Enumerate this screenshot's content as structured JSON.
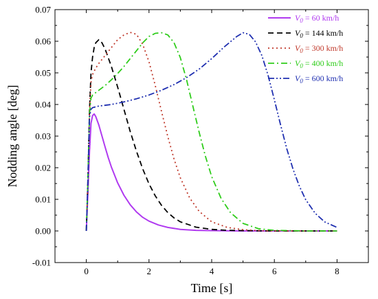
{
  "chart_data": {
    "type": "line",
    "xlabel": "Time [s]",
    "ylabel": "Nodding angle  [deg]",
    "xlim": [
      -1,
      9
    ],
    "ylim": [
      -0.01,
      0.07
    ],
    "x_ticks": [
      "0",
      "2",
      "4",
      "6",
      "8"
    ],
    "x_tick_values": [
      0,
      2,
      4,
      6,
      8
    ],
    "y_ticks": [
      "-0.01",
      "0.00",
      "0.01",
      "0.02",
      "0.03",
      "0.04",
      "0.05",
      "0.06",
      "0.07"
    ],
    "y_tick_values": [
      -0.01,
      0,
      0.01,
      0.02,
      0.03,
      0.04,
      0.05,
      0.06,
      0.07
    ],
    "legend_position": "top-right",
    "grid": false,
    "series": [
      {
        "name": "V0 = 60 km/h",
        "legend_var": "V",
        "legend_sub": "0",
        "legend_rest": " = 60 km/h",
        "color": "#b03af0",
        "style": "solid",
        "x": [
          0,
          0.05,
          0.1,
          0.15,
          0.2,
          0.25,
          0.3,
          0.4,
          0.5,
          0.6,
          0.7,
          0.8,
          1.0,
          1.2,
          1.4,
          1.6,
          1.8,
          2.0,
          2.3,
          2.6,
          3.0,
          3.5,
          4.0,
          5.0,
          6.0,
          7.0,
          8.0
        ],
        "y": [
          0,
          0.012,
          0.025,
          0.034,
          0.0365,
          0.037,
          0.0362,
          0.0335,
          0.03,
          0.0265,
          0.0232,
          0.0202,
          0.0152,
          0.0113,
          0.0083,
          0.006,
          0.0043,
          0.0031,
          0.0019,
          0.0011,
          0.0005,
          0.0002,
          0.0001,
          0,
          0,
          0,
          0
        ]
      },
      {
        "name": "V0 = 144 km/h",
        "legend_var": "V",
        "legend_sub": "0",
        "legend_rest": " = 144 km/h",
        "color": "#000000",
        "style": "dashed",
        "x": [
          0,
          0.05,
          0.1,
          0.15,
          0.2,
          0.25,
          0.3,
          0.4,
          0.5,
          0.6,
          0.8,
          1.0,
          1.2,
          1.4,
          1.6,
          1.8,
          2.0,
          2.2,
          2.4,
          2.6,
          2.8,
          3.0,
          3.5,
          4.0,
          4.5,
          5.0,
          6.0,
          7.0,
          8.0
        ],
        "y": [
          0,
          0.016,
          0.038,
          0.05,
          0.055,
          0.058,
          0.0595,
          0.0605,
          0.0595,
          0.0575,
          0.052,
          0.0455,
          0.0385,
          0.0315,
          0.0252,
          0.0196,
          0.0149,
          0.0111,
          0.0081,
          0.0058,
          0.0041,
          0.0029,
          0.0012,
          0.0005,
          0.0002,
          0.0001,
          0,
          0,
          0
        ]
      },
      {
        "name": "V0 = 300 km/h",
        "legend_var": "V",
        "legend_sub": "0",
        "legend_rest": " = 300 km/h",
        "color": "#c0392b",
        "style": "dotted",
        "x": [
          0,
          0.05,
          0.1,
          0.15,
          0.2,
          0.3,
          0.4,
          0.6,
          0.8,
          1.0,
          1.2,
          1.4,
          1.6,
          1.8,
          2.0,
          2.2,
          2.4,
          2.6,
          2.8,
          3.0,
          3.3,
          3.6,
          4.0,
          4.5,
          5.0,
          5.5,
          6.0,
          7.0,
          8.0
        ],
        "y": [
          0,
          0.016,
          0.038,
          0.047,
          0.0495,
          0.0515,
          0.053,
          0.0555,
          0.058,
          0.0605,
          0.062,
          0.0628,
          0.0622,
          0.059,
          0.0535,
          0.046,
          0.0378,
          0.0298,
          0.0227,
          0.0168,
          0.0104,
          0.0062,
          0.0029,
          0.0011,
          0.0004,
          0.0001,
          0,
          0,
          0
        ]
      },
      {
        "name": "V0 = 400 km/h",
        "legend_var": "V",
        "legend_sub": "0",
        "legend_rest": " = 400 km/h",
        "color": "#2ecc1a",
        "style": "dashdot",
        "x": [
          0,
          0.05,
          0.1,
          0.15,
          0.2,
          0.4,
          0.6,
          0.8,
          1.0,
          1.2,
          1.4,
          1.6,
          1.8,
          2.0,
          2.2,
          2.4,
          2.6,
          2.8,
          3.0,
          3.2,
          3.4,
          3.6,
          3.8,
          4.0,
          4.3,
          4.6,
          5.0,
          5.5,
          6.0,
          7.0,
          8.0
        ],
        "y": [
          0,
          0.016,
          0.037,
          0.042,
          0.043,
          0.0445,
          0.046,
          0.0478,
          0.0498,
          0.052,
          0.0545,
          0.057,
          0.0595,
          0.0615,
          0.0625,
          0.0627,
          0.062,
          0.0595,
          0.0548,
          0.0478,
          0.0395,
          0.0312,
          0.0236,
          0.0172,
          0.0103,
          0.0058,
          0.0024,
          0.0007,
          0.0002,
          0,
          0
        ]
      },
      {
        "name": "V0 = 600 km/h",
        "legend_var": "V",
        "legend_sub": "0",
        "legend_rest": " = 600 km/h",
        "color": "#1f2fb0",
        "style": "dashdotdot",
        "x": [
          0,
          0.05,
          0.1,
          0.15,
          0.2,
          0.4,
          0.8,
          1.2,
          1.6,
          2.0,
          2.4,
          2.8,
          3.2,
          3.6,
          4.0,
          4.4,
          4.8,
          5.0,
          5.2,
          5.4,
          5.6,
          5.8,
          6.0,
          6.2,
          6.4,
          6.6,
          6.8,
          7.0,
          7.3,
          7.6,
          8.0
        ],
        "y": [
          0,
          0.016,
          0.036,
          0.0385,
          0.039,
          0.0395,
          0.04,
          0.0408,
          0.0418,
          0.043,
          0.0445,
          0.0463,
          0.0485,
          0.0512,
          0.0545,
          0.0582,
          0.0615,
          0.0627,
          0.0622,
          0.0598,
          0.0555,
          0.0492,
          0.0415,
          0.0335,
          0.0259,
          0.0194,
          0.0141,
          0.0099,
          0.0056,
          0.0029,
          0.0011
        ]
      }
    ]
  }
}
